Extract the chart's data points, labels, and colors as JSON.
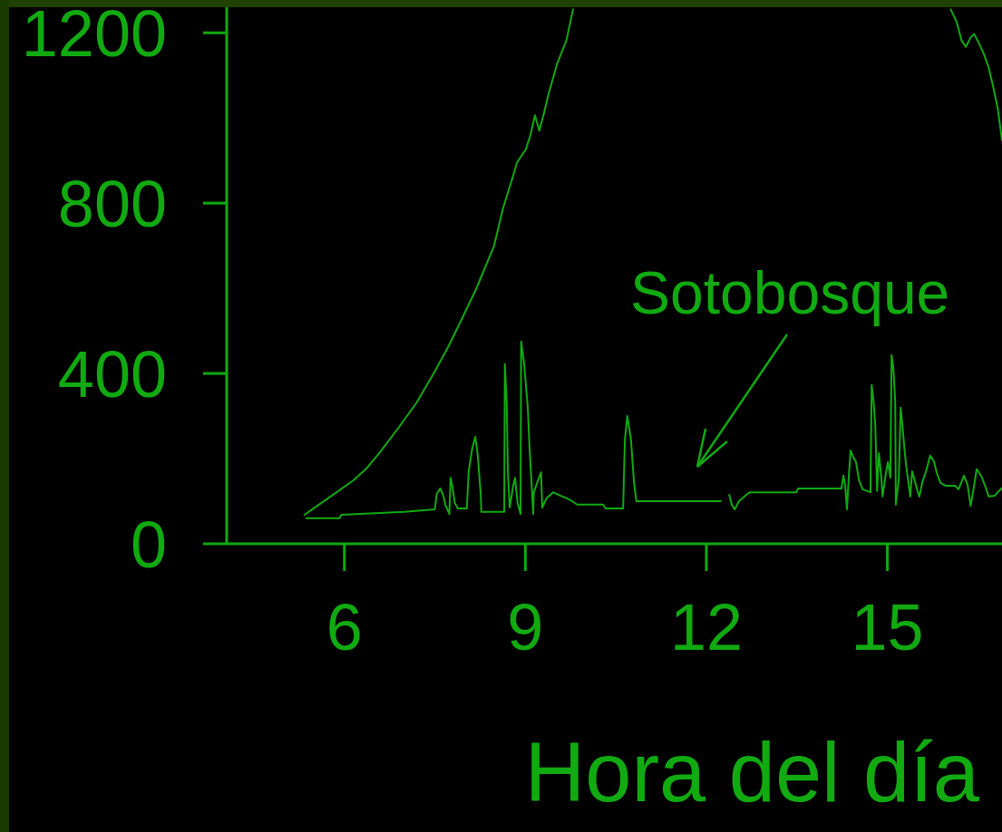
{
  "chart_data": {
    "type": "line",
    "xlabel": "Hora del día",
    "xlim": [
      4.05,
      16.9
    ],
    "ylim": [
      0,
      1260
    ],
    "xticks": [
      6,
      9,
      12,
      15
    ],
    "yticks": [
      0,
      400,
      800,
      1200
    ],
    "line_style": "solid",
    "series": [
      {
        "color": "#11aa11",
        "x": [
          5.34,
          5.55,
          5.85,
          6.15,
          6.38,
          6.6,
          6.9,
          7.2,
          7.5,
          7.73,
          7.95,
          8.18,
          8.48,
          8.63,
          8.78,
          8.86,
          9.01,
          9.08,
          9.16,
          9.23,
          9.31,
          9.38,
          9.53,
          9.68,
          9.79,
          12.5,
          16.05,
          16.15,
          16.23,
          16.3,
          16.38,
          16.44,
          16.53,
          16.6,
          16.68,
          16.75,
          16.83,
          16.9
        ],
        "values": [
          68,
          89,
          119,
          149,
          179,
          217,
          273,
          332,
          405,
          465,
          529,
          597,
          699,
          788,
          856,
          895,
          927,
          958,
          1006,
          970,
          1012,
          1054,
          1129,
          1182,
          1255,
          null,
          1255,
          1225,
          1182,
          1167,
          1189,
          1197,
          1172,
          1150,
          1118,
          1076,
          1022,
          948
        ]
      },
      {
        "name": "Sotobosque",
        "color": "#11aa11",
        "x": [
          5.37,
          5.92,
          5.95,
          6.99,
          7.5,
          7.53,
          7.59,
          7.64,
          7.68,
          7.74,
          7.76,
          7.79,
          7.83,
          7.88,
          8.03,
          8.06,
          8.12,
          8.17,
          8.21,
          8.26,
          8.27,
          8.65,
          8.66,
          8.69,
          8.71,
          8.74,
          8.8,
          8.83,
          8.87,
          8.92,
          8.93,
          8.98,
          9.04,
          9.07,
          9.11,
          9.13,
          9.14,
          9.22,
          9.26,
          9.28,
          9.35,
          9.46,
          9.58,
          9.73,
          9.86,
          10.29,
          10.33,
          10.62,
          10.65,
          10.69,
          10.75,
          10.8,
          10.84,
          12.24,
          12.3,
          12.38,
          12.42,
          12.47,
          12.54,
          12.68,
          12.72,
          13.49,
          13.52,
          14.24,
          14.27,
          14.3,
          14.33,
          14.36,
          14.39,
          14.44,
          14.48,
          14.53,
          14.59,
          14.72,
          14.74,
          14.77,
          14.8,
          14.83,
          14.86,
          14.9,
          14.92,
          14.98,
          15.01,
          15.05,
          15.07,
          15.1,
          15.13,
          15.14,
          15.19,
          15.22,
          15.25,
          15.28,
          15.31,
          15.35,
          15.38,
          15.41,
          15.46,
          15.5,
          15.53,
          15.58,
          15.64,
          15.71,
          15.77,
          15.82,
          15.88,
          15.97,
          16.12,
          16.18,
          16.27,
          16.33,
          16.38,
          16.42,
          16.48,
          16.56,
          16.63,
          16.68,
          16.78,
          16.83,
          16.89
        ],
        "values": [
          60,
          60,
          68,
          75,
          81,
          117,
          130,
          113,
          89,
          70,
          155,
          136,
          96,
          83,
          83,
          170,
          224,
          251,
          209,
          117,
          75,
          75,
          422,
          337,
          170,
          85,
          138,
          155,
          96,
          70,
          475,
          422,
          320,
          224,
          124,
          70,
          121,
          153,
          168,
          85,
          107,
          121,
          113,
          104,
          92,
          92,
          83,
          83,
          245,
          300,
          245,
          145,
          100,
          100,
          null,
          115,
          92,
          81,
          100,
          117,
          121,
          121,
          130,
          130,
          160,
          138,
          81,
          155,
          219,
          202,
          192,
          149,
          128,
          121,
          373,
          337,
          277,
          124,
          213,
          155,
          111,
          170,
          192,
          155,
          443,
          411,
          334,
          92,
          153,
          320,
          277,
          228,
          185,
          143,
          111,
          170,
          145,
          124,
          111,
          145,
          170,
          207,
          194,
          166,
          143,
          136,
          136,
          128,
          160,
          138,
          89,
          121,
          175,
          158,
          132,
          111,
          113,
          121,
          130
        ]
      }
    ]
  }
}
